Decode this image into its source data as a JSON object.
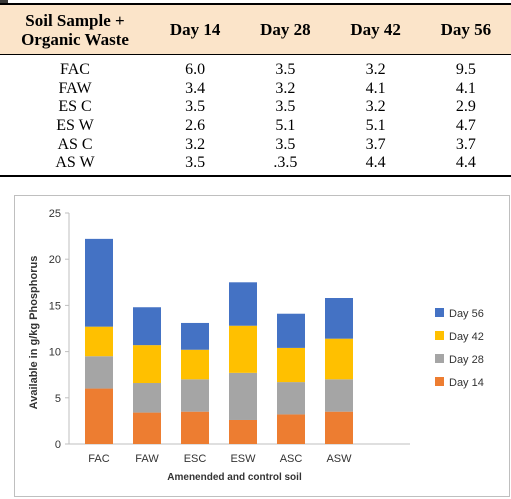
{
  "table": {
    "header_line1": "Soil Sample +",
    "header_line2": "Organic Waste",
    "columns": [
      "Day 14",
      "Day 28",
      "Day 42",
      "Day 56"
    ],
    "rows": [
      {
        "sample": "FAC",
        "values": [
          "6.0",
          "3.5",
          "3.2",
          "9.5"
        ]
      },
      {
        "sample": "FAW",
        "values": [
          "3.4",
          "3.2",
          "4.1",
          "4.1"
        ]
      },
      {
        "sample": "ES C",
        "values": [
          "3.5",
          "3.5",
          "3.2",
          "2.9"
        ]
      },
      {
        "sample": "ES W",
        "values": [
          "2.6",
          "5.1",
          "5.1",
          "4.7"
        ]
      },
      {
        "sample": "AS C",
        "values": [
          "3.2",
          "3.5",
          "3.7",
          "3.7"
        ]
      },
      {
        "sample": "AS W",
        "values": [
          "3.5",
          ".3.5",
          "4.4",
          "4.4"
        ]
      }
    ]
  },
  "chart_data": {
    "type": "bar",
    "stacked": true,
    "categories": [
      "FAC",
      "FAW",
      "ESC",
      "ESW",
      "ASC",
      "ASW"
    ],
    "series": [
      {
        "name": "Day 14",
        "color": "#ed7d31",
        "values": [
          6.0,
          3.4,
          3.5,
          2.6,
          3.2,
          3.5
        ]
      },
      {
        "name": "Day 28",
        "color": "#a5a5a5",
        "values": [
          3.5,
          3.2,
          3.5,
          5.1,
          3.5,
          3.5
        ]
      },
      {
        "name": "Day 42",
        "color": "#ffc000",
        "values": [
          3.2,
          4.1,
          3.2,
          5.1,
          3.7,
          4.4
        ]
      },
      {
        "name": "Day 56",
        "color": "#4472c4",
        "values": [
          9.5,
          4.1,
          2.9,
          4.7,
          3.7,
          4.4
        ]
      }
    ],
    "legend_order": [
      "Day 56",
      "Day 42",
      "Day 28",
      "Day 14"
    ],
    "title": "",
    "xlabel": "Amenended and control soil",
    "ylabel": "Available in g/kg Phosphorus",
    "ylim": [
      0,
      25
    ],
    "yticks": [
      0,
      5,
      10,
      15,
      20,
      25
    ],
    "legend_position": "right",
    "grid": false
  }
}
